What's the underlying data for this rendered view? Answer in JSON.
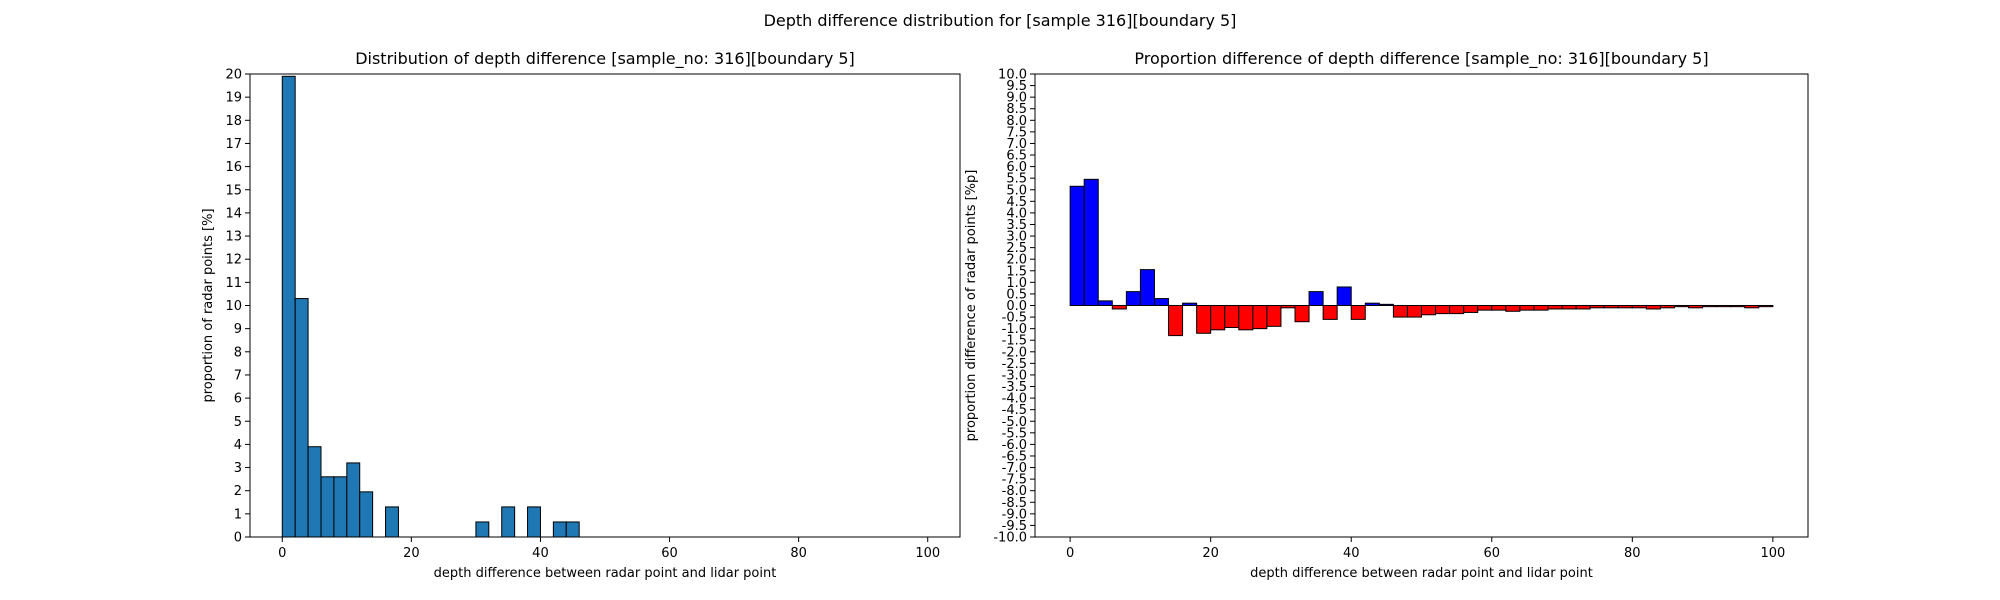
{
  "figure": {
    "suptitle": "Depth difference distribution for [sample 316][boundary 5]"
  },
  "chart_data": [
    {
      "type": "bar",
      "title": "Distribution of depth difference [sample_no: 316][boundary 5]",
      "xlabel": "depth difference between radar point and lidar point",
      "ylabel": "proportion of radar points [%]",
      "xlim": [
        -5,
        105
      ],
      "ylim": [
        0,
        20
      ],
      "x_ticks": [
        0,
        20,
        40,
        60,
        80,
        100
      ],
      "y_ticks": [
        0,
        1,
        2,
        3,
        4,
        5,
        6,
        7,
        8,
        9,
        10,
        11,
        12,
        13,
        14,
        15,
        16,
        17,
        18,
        19,
        20
      ],
      "bin_width": 2,
      "bin_starts": [
        0,
        2,
        4,
        6,
        8,
        10,
        12,
        14,
        16,
        18,
        20,
        22,
        24,
        26,
        28,
        30,
        32,
        34,
        36,
        38,
        40,
        42,
        44,
        46,
        48
      ],
      "values": [
        19.9,
        10.3,
        3.9,
        2.6,
        2.6,
        3.2,
        1.95,
        0,
        1.3,
        0,
        0,
        0,
        0,
        0,
        0,
        0.65,
        0,
        1.3,
        0,
        1.3,
        0,
        0.65,
        0.65,
        0,
        0
      ],
      "color": "#1f77b4",
      "edgecolor": "#000000",
      "grid": false
    },
    {
      "type": "bar",
      "title": "Proportion difference of depth difference [sample_no: 316][boundary 5]",
      "xlabel": "depth difference between radar point and lidar point",
      "ylabel": "proportion difference of radar points [%p]",
      "xlim": [
        -5,
        105
      ],
      "ylim": [
        -10,
        10
      ],
      "x_ticks": [
        0,
        20,
        40,
        60,
        80,
        100
      ],
      "y_ticks": [
        -10.0,
        -9.5,
        -9.0,
        -8.5,
        -8.0,
        -7.5,
        -7.0,
        -6.5,
        -6.0,
        -5.5,
        -5.0,
        -4.5,
        -4.0,
        -3.5,
        -3.0,
        -2.5,
        -2.0,
        -1.5,
        -1.0,
        -0.5,
        0.0,
        0.5,
        1.0,
        1.5,
        2.0,
        2.5,
        3.0,
        3.5,
        4.0,
        4.5,
        5.0,
        5.5,
        6.0,
        6.5,
        7.0,
        7.5,
        8.0,
        8.5,
        9.0,
        9.5,
        10.0
      ],
      "bin_width": 2,
      "bin_starts": [
        0,
        2,
        4,
        6,
        8,
        10,
        12,
        14,
        16,
        18,
        20,
        22,
        24,
        26,
        28,
        30,
        32,
        34,
        36,
        38,
        40,
        42,
        44,
        46,
        48,
        50,
        52,
        54,
        56,
        58,
        60,
        62,
        64,
        66,
        68,
        70,
        72,
        74,
        76,
        78,
        80,
        82,
        84,
        86,
        88,
        90,
        92,
        94,
        96,
        98
      ],
      "values": [
        5.15,
        5.45,
        0.2,
        -0.15,
        0.6,
        1.55,
        0.3,
        -1.3,
        0.1,
        -1.2,
        -1.05,
        -0.95,
        -1.05,
        -1.0,
        -0.9,
        -0.1,
        -0.7,
        0.6,
        -0.6,
        0.8,
        -0.6,
        0.1,
        0.05,
        -0.5,
        -0.5,
        -0.4,
        -0.35,
        -0.35,
        -0.3,
        -0.2,
        -0.2,
        -0.25,
        -0.2,
        -0.2,
        -0.15,
        -0.15,
        -0.15,
        -0.1,
        -0.1,
        -0.1,
        -0.1,
        -0.15,
        -0.1,
        -0.05,
        -0.1,
        -0.05,
        -0.05,
        -0.05,
        -0.1,
        -0.05
      ],
      "positive_color": "#0000ff",
      "negative_color": "#ff0000",
      "edgecolor": "#000000",
      "grid": false
    }
  ]
}
